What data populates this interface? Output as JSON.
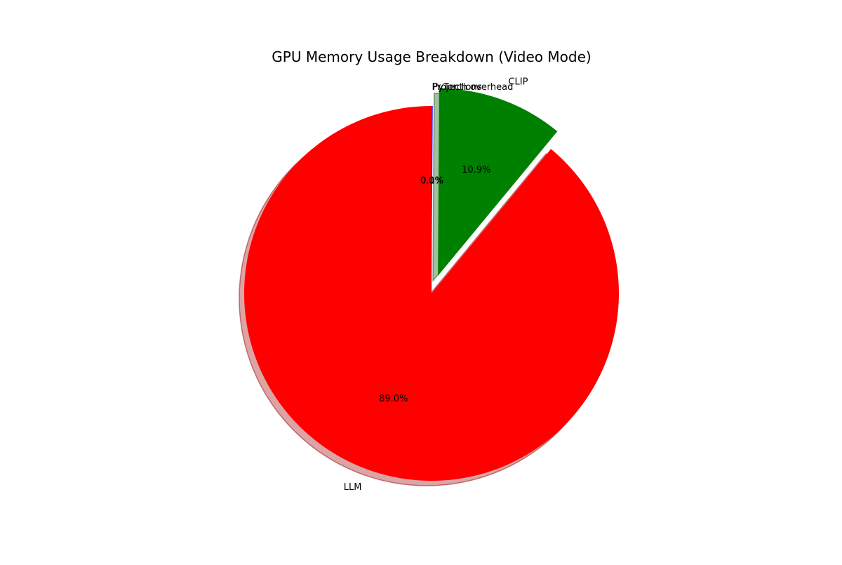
{
  "chart_data": {
    "type": "pie",
    "title": "GPU Memory Usage Breakdown (Video Mode)",
    "start_angle_deg": 90,
    "direction": "counterclockwise",
    "shadow": true,
    "slices": [
      {
        "label": "LLM",
        "value": 89.0,
        "pct_label": "89.0%",
        "color": "#ff0000",
        "explode": 0.0
      },
      {
        "label": "CLIP",
        "value": 10.9,
        "pct_label": "10.9%",
        "color": "#008000",
        "explode": 0.1
      },
      {
        "label": "PyTorch overhead",
        "value": 0.05,
        "pct_label": "0.1%",
        "color": "#0000ff",
        "explode": 0.0
      },
      {
        "label": "Projections",
        "value": 0.05,
        "pct_label": "0.0%",
        "color": "#800080",
        "explode": 0.0
      }
    ]
  }
}
